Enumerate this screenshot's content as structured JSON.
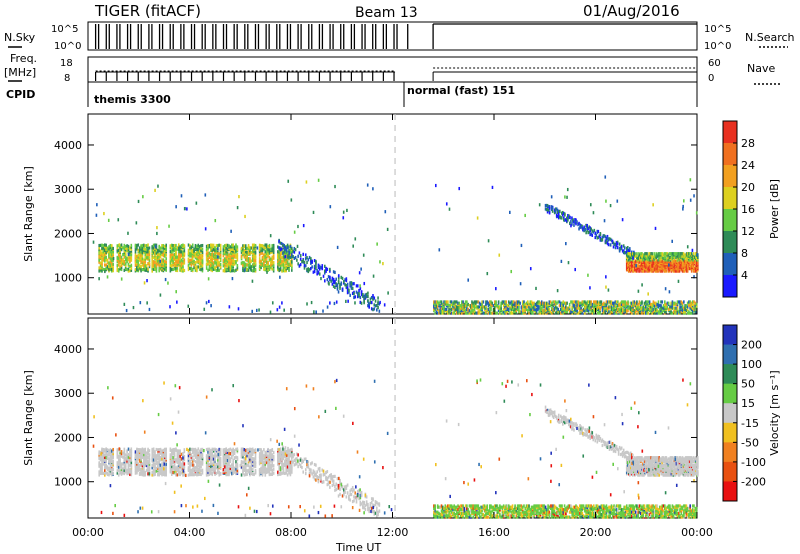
{
  "header": {
    "title": "TIGER (fitACF)",
    "beam": "Beam 13",
    "date": "01/Aug/2016"
  },
  "strip_labels": {
    "nsky": "N.Sky",
    "freq": "Freq.",
    "freq_unit": "[MHz]",
    "cpid": "CPID",
    "nsearch": "N.Search",
    "nave": "Nave",
    "nsky_ticks": [
      "10^5",
      "10^0"
    ],
    "nsearch_ticks": [
      "10^5",
      "10^0"
    ],
    "freq_ticks": [
      "18",
      "8"
    ],
    "nave_ticks": [
      "60",
      "0"
    ],
    "cpid_1": "themis 3300",
    "cpid_2": "normal (fast) 151"
  },
  "chart_data": [
    {
      "type": "heatmap",
      "title": "",
      "xlabel": "Time UT",
      "ylabel": "Slant Range [km]",
      "x_ticks": [
        "00:00",
        "04:00",
        "08:00",
        "12:00",
        "16:00",
        "20:00",
        "00:00"
      ],
      "y_ticks": [
        "1000",
        "2000",
        "3000",
        "4000"
      ],
      "xlim": [
        0,
        24
      ],
      "ylim": [
        180,
        4700
      ],
      "colorbar": {
        "label": "Power [dB]",
        "ticks": [
          "4",
          "8",
          "12",
          "16",
          "20",
          "24",
          "28"
        ],
        "colors": [
          "#1a1aff",
          "#1f5fb8",
          "#2e8b57",
          "#66cc44",
          "#ddd020",
          "#f2a020",
          "#f07020",
          "#e83020"
        ]
      },
      "scatter_regions": [
        {
          "t": [
            0.3,
            8.0
          ],
          "range": [
            1150,
            1750
          ],
          "value": "16-24 dB"
        },
        {
          "t": [
            8.0,
            11.5
          ],
          "range": [
            300,
            1400
          ],
          "value": "4-12 dB"
        },
        {
          "t": [
            13.6,
            24.0
          ],
          "range": [
            200,
            450
          ],
          "value": "8-20 dB"
        },
        {
          "t": [
            21.2,
            24.0
          ],
          "range": [
            1150,
            1500
          ],
          "value": "12-28 dB"
        }
      ]
    },
    {
      "type": "heatmap",
      "title": "",
      "xlabel": "Time UT",
      "ylabel": "Slant Range [km]",
      "x_ticks": [
        "00:00",
        "04:00",
        "08:00",
        "12:00",
        "16:00",
        "20:00",
        "00:00"
      ],
      "y_ticks": [
        "1000",
        "2000",
        "3000",
        "4000"
      ],
      "xlim": [
        0,
        24
      ],
      "ylim": [
        180,
        4700
      ],
      "colorbar": {
        "label": "Velocity [m s⁻¹]",
        "ticks": [
          "200",
          "100",
          "50",
          "15",
          "-15",
          "-50",
          "-100",
          "-200"
        ],
        "colors": [
          "#2233bb",
          "#2f6fb0",
          "#2e8b57",
          "#66cc44",
          "#c8c8c8",
          "#f0c020",
          "#f08020",
          "#e85010",
          "#e81010"
        ]
      },
      "scatter_regions": [
        {
          "t": [
            0.3,
            8.0
          ],
          "range": [
            1150,
            1750
          ],
          "value": "-15 to 15 m/s"
        },
        {
          "t": [
            13.6,
            24.0
          ],
          "range": [
            200,
            450
          ],
          "value": "15 to 50 m/s"
        },
        {
          "t": [
            21.2,
            24.0
          ],
          "range": [
            1150,
            1500
          ],
          "value": "-15 to 15 m/s"
        }
      ]
    }
  ]
}
